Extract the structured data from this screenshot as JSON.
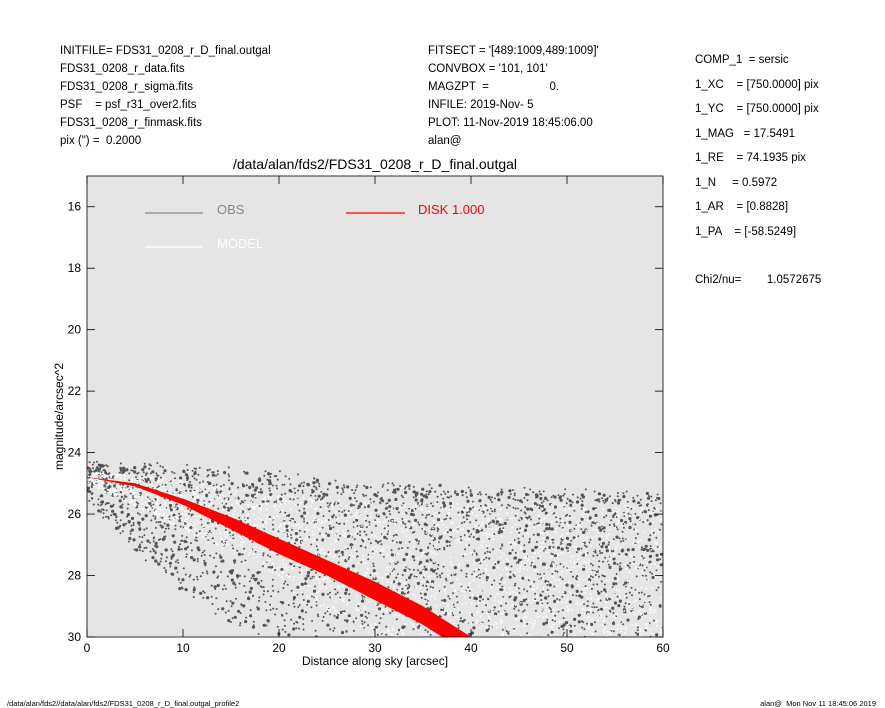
{
  "header": {
    "left": [
      "INITFILE= FDS31_0208_r_D_final.outgal",
      "FDS31_0208_r_data.fits",
      "FDS31_0208_r_sigma.fits",
      "PSF    = psf_r31_over2.fits",
      "FDS31_0208_r_finmask.fits",
      "pix (\") =  0.2000"
    ],
    "middle": [
      "FITSECT = '[489:1009,489:1009]'",
      "CONVBOX = '101, 101'",
      "MAGZPT  =                   0.",
      "INFILE: 2019-Nov- 5",
      "PLOT: 11-Nov-2019 18:45:06.00",
      "alan@"
    ],
    "right": [
      "COMP_1  = sersic",
      "1_XC    = [750.0000] pix",
      "1_YC    = [750.0000] pix",
      "1_MAG   = 17.5491",
      "1_RE    = 74.1935 pix",
      "1_N     = 0.5972",
      "1_AR    = [0.8828]",
      "1_PA    = [-58.5249]"
    ],
    "chi2": "Chi2/nu=        1.0572675"
  },
  "footer": {
    "left": "/data/alan/fds2//data/alan/fds2/FDS31_0208_r_D_final.outgal_profile2",
    "right": "alan@  Mon Nov 11 18:45:06 2019"
  },
  "colors": {
    "background_panel": "#e5e5e5",
    "obs": "#555555",
    "model": "#ffffff",
    "disk": "#ff0000"
  },
  "chart_data": {
    "type": "scatter",
    "title": "/data/alan/fds2/FDS31_0208_r_D_final.outgal",
    "xlabel": "Distance along sky [arcsec]",
    "ylabel": "magnitude/arcsec^2",
    "xlim": [
      0,
      60
    ],
    "ylim": [
      30,
      15
    ],
    "y_inverted": true,
    "xticks": [
      0,
      10,
      20,
      30,
      40,
      50,
      60
    ],
    "yticks": [
      16,
      18,
      20,
      22,
      24,
      26,
      28,
      30
    ],
    "grid": false,
    "legend": [
      {
        "label": "OBS",
        "color": "#888888"
      },
      {
        "label": "MODEL",
        "color": "#ffffff"
      },
      {
        "label": "DISK  1.000",
        "color": "#ff0000"
      }
    ],
    "series": [
      {
        "name": "OBS",
        "marker": "dot",
        "description_points": "scattered observed pixel values",
        "upper_envelope": [
          [
            0,
            24.4
          ],
          [
            10,
            24.5
          ],
          [
            20,
            24.7
          ],
          [
            30,
            25.1
          ],
          [
            40,
            25.2
          ],
          [
            50,
            25.3
          ],
          [
            60,
            25.4
          ]
        ],
        "lower_envelope": [
          [
            0,
            25.5
          ],
          [
            5,
            27.2
          ],
          [
            10,
            28.5
          ],
          [
            15,
            29.5
          ],
          [
            20,
            30.0
          ],
          [
            60,
            30.0
          ]
        ]
      },
      {
        "name": "MODEL",
        "marker": "dot",
        "upper_envelope": [
          [
            0,
            24.6
          ],
          [
            10,
            24.9
          ],
          [
            20,
            25.4
          ],
          [
            30,
            25.6
          ],
          [
            40,
            25.6
          ],
          [
            50,
            25.7
          ],
          [
            60,
            25.7
          ]
        ],
        "lower_envelope": [
          [
            0,
            25.0
          ],
          [
            10,
            26.5
          ],
          [
            20,
            28.0
          ],
          [
            25,
            29.2
          ],
          [
            30,
            30.0
          ],
          [
            60,
            30.0
          ]
        ]
      },
      {
        "name": "DISK  1.000",
        "marker": "band",
        "upper_curve": [
          [
            0,
            24.8
          ],
          [
            5,
            25.0
          ],
          [
            10,
            25.5
          ],
          [
            15,
            26.1
          ],
          [
            20,
            26.8
          ],
          [
            25,
            27.5
          ],
          [
            30,
            28.2
          ],
          [
            35,
            29.0
          ],
          [
            39,
            29.8
          ],
          [
            40,
            30.0
          ]
        ],
        "lower_curve": [
          [
            0,
            24.8
          ],
          [
            5,
            25.1
          ],
          [
            10,
            25.7
          ],
          [
            15,
            26.5
          ],
          [
            20,
            27.3
          ],
          [
            25,
            28.0
          ],
          [
            30,
            28.8
          ],
          [
            35,
            29.6
          ],
          [
            37,
            30.0
          ]
        ]
      }
    ]
  }
}
